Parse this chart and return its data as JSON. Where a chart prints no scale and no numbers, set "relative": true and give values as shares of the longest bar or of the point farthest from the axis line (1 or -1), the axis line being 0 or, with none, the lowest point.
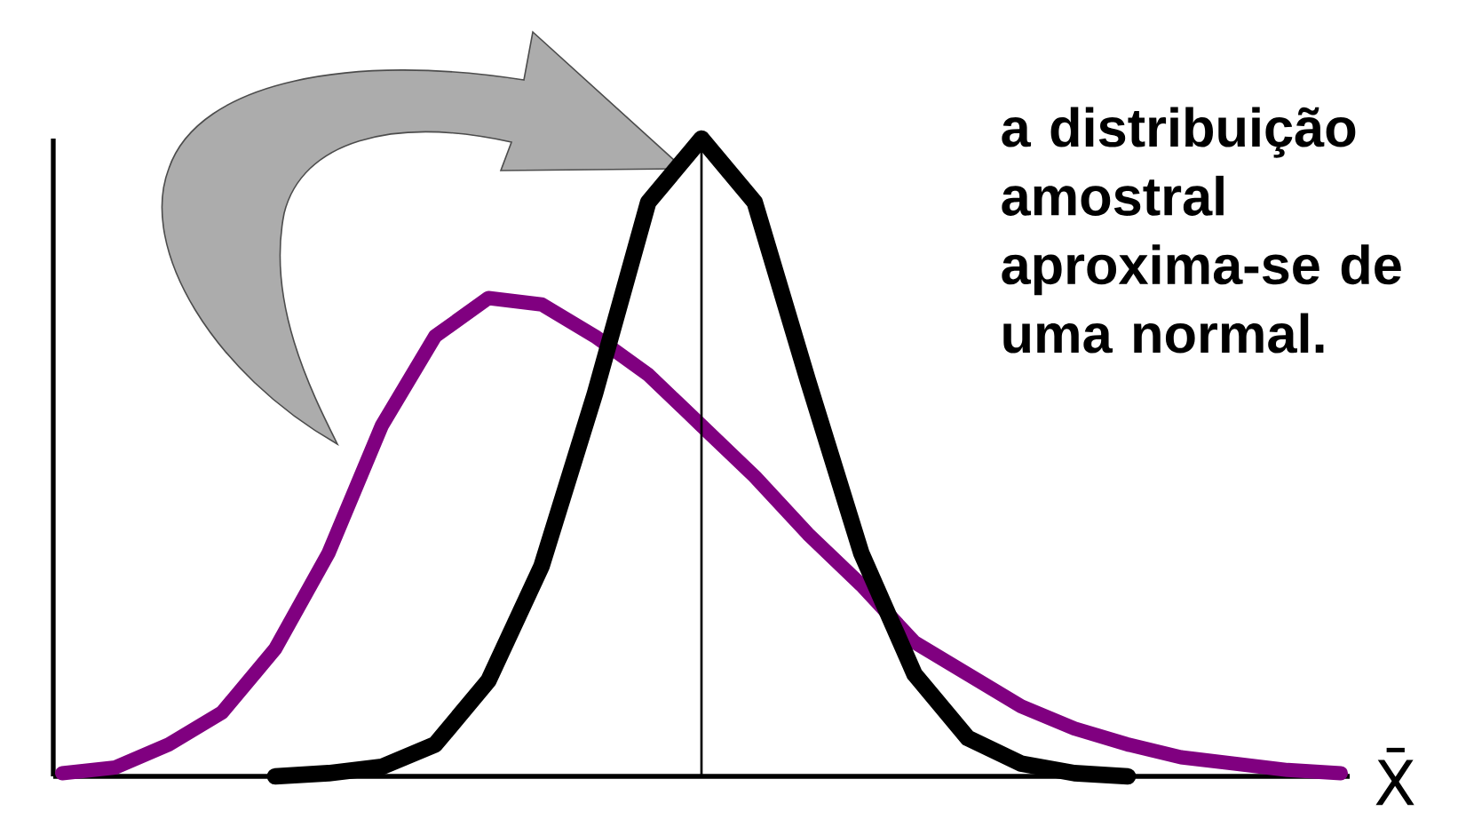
{
  "chart_data": {
    "type": "line",
    "xlabel": "X̄",
    "categories": [
      null,
      null,
      null,
      null,
      null,
      null,
      null,
      null,
      null,
      null,
      null,
      null,
      null,
      null,
      null,
      null,
      null,
      null,
      null,
      null,
      null,
      null,
      null,
      null,
      null
    ],
    "relative": true,
    "series": [
      {
        "color": "#800080",
        "values": [
          0.005,
          0.014,
          0.05,
          0.1,
          0.2,
          0.35,
          0.55,
          0.69,
          0.75,
          0.74,
          0.69,
          0.63,
          0.55,
          0.47,
          0.38,
          0.3,
          0.21,
          0.16,
          0.11,
          0.075,
          0.05,
          0.03,
          0.02,
          0.01,
          0.005
        ]
      },
      {
        "color": "#000000",
        "values": [
          null,
          null,
          null,
          null,
          0.0,
          0.005,
          0.015,
          0.05,
          0.15,
          0.33,
          0.6,
          0.9,
          1.0,
          0.9,
          0.62,
          0.35,
          0.16,
          0.06,
          0.02,
          0.005,
          0.0,
          null,
          null,
          null,
          null
        ]
      }
    ],
    "annotations": [
      "a distribuição amostral aproxima-se de uma normal."
    ],
    "marker": "none",
    "line_style": "solid"
  }
}
